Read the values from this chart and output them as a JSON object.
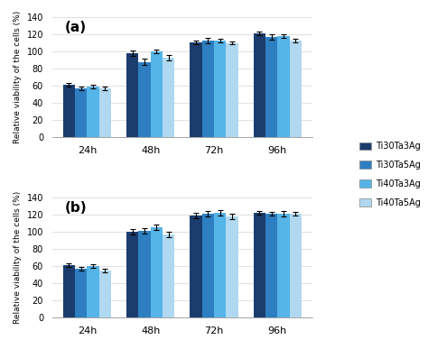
{
  "time_points": [
    "24h",
    "48h",
    "72h",
    "96h"
  ],
  "panel_a": {
    "series": [
      {
        "values": [
          61,
          98,
          111,
          121
        ],
        "errors": [
          2,
          3,
          2,
          2
        ]
      },
      {
        "values": [
          57,
          88,
          113,
          117
        ],
        "errors": [
          2,
          4,
          3,
          3
        ]
      },
      {
        "values": [
          59,
          100,
          113,
          118
        ],
        "errors": [
          2,
          2,
          2,
          2
        ]
      },
      {
        "values": [
          57,
          93,
          110,
          113
        ],
        "errors": [
          2,
          3,
          2,
          2
        ]
      }
    ],
    "label": "(a)"
  },
  "panel_b": {
    "series": [
      {
        "values": [
          61,
          100,
          119,
          122
        ],
        "errors": [
          2,
          3,
          3,
          2
        ]
      },
      {
        "values": [
          57,
          101,
          121,
          121
        ],
        "errors": [
          2,
          3,
          3,
          2
        ]
      },
      {
        "values": [
          60,
          105,
          122,
          121
        ],
        "errors": [
          2,
          3,
          3,
          3
        ]
      },
      {
        "values": [
          55,
          97,
          118,
          121
        ],
        "errors": [
          2,
          3,
          3,
          2
        ]
      }
    ],
    "label": "(b)"
  },
  "colors": [
    "#1b3d6e",
    "#2e7fc1",
    "#55b4e8",
    "#b0d8f0"
  ],
  "legend_labels": [
    "Ti30Ta3Ag",
    "Ti30Ta5Ag",
    "Ti40Ta3Ag",
    "Ti40Ta5Ag"
  ],
  "ylabel": "Relative viability of the cells (%)",
  "ylim": [
    0,
    140
  ],
  "yticks": [
    0,
    20,
    40,
    60,
    80,
    100,
    120,
    140
  ],
  "bar_width": 0.19
}
